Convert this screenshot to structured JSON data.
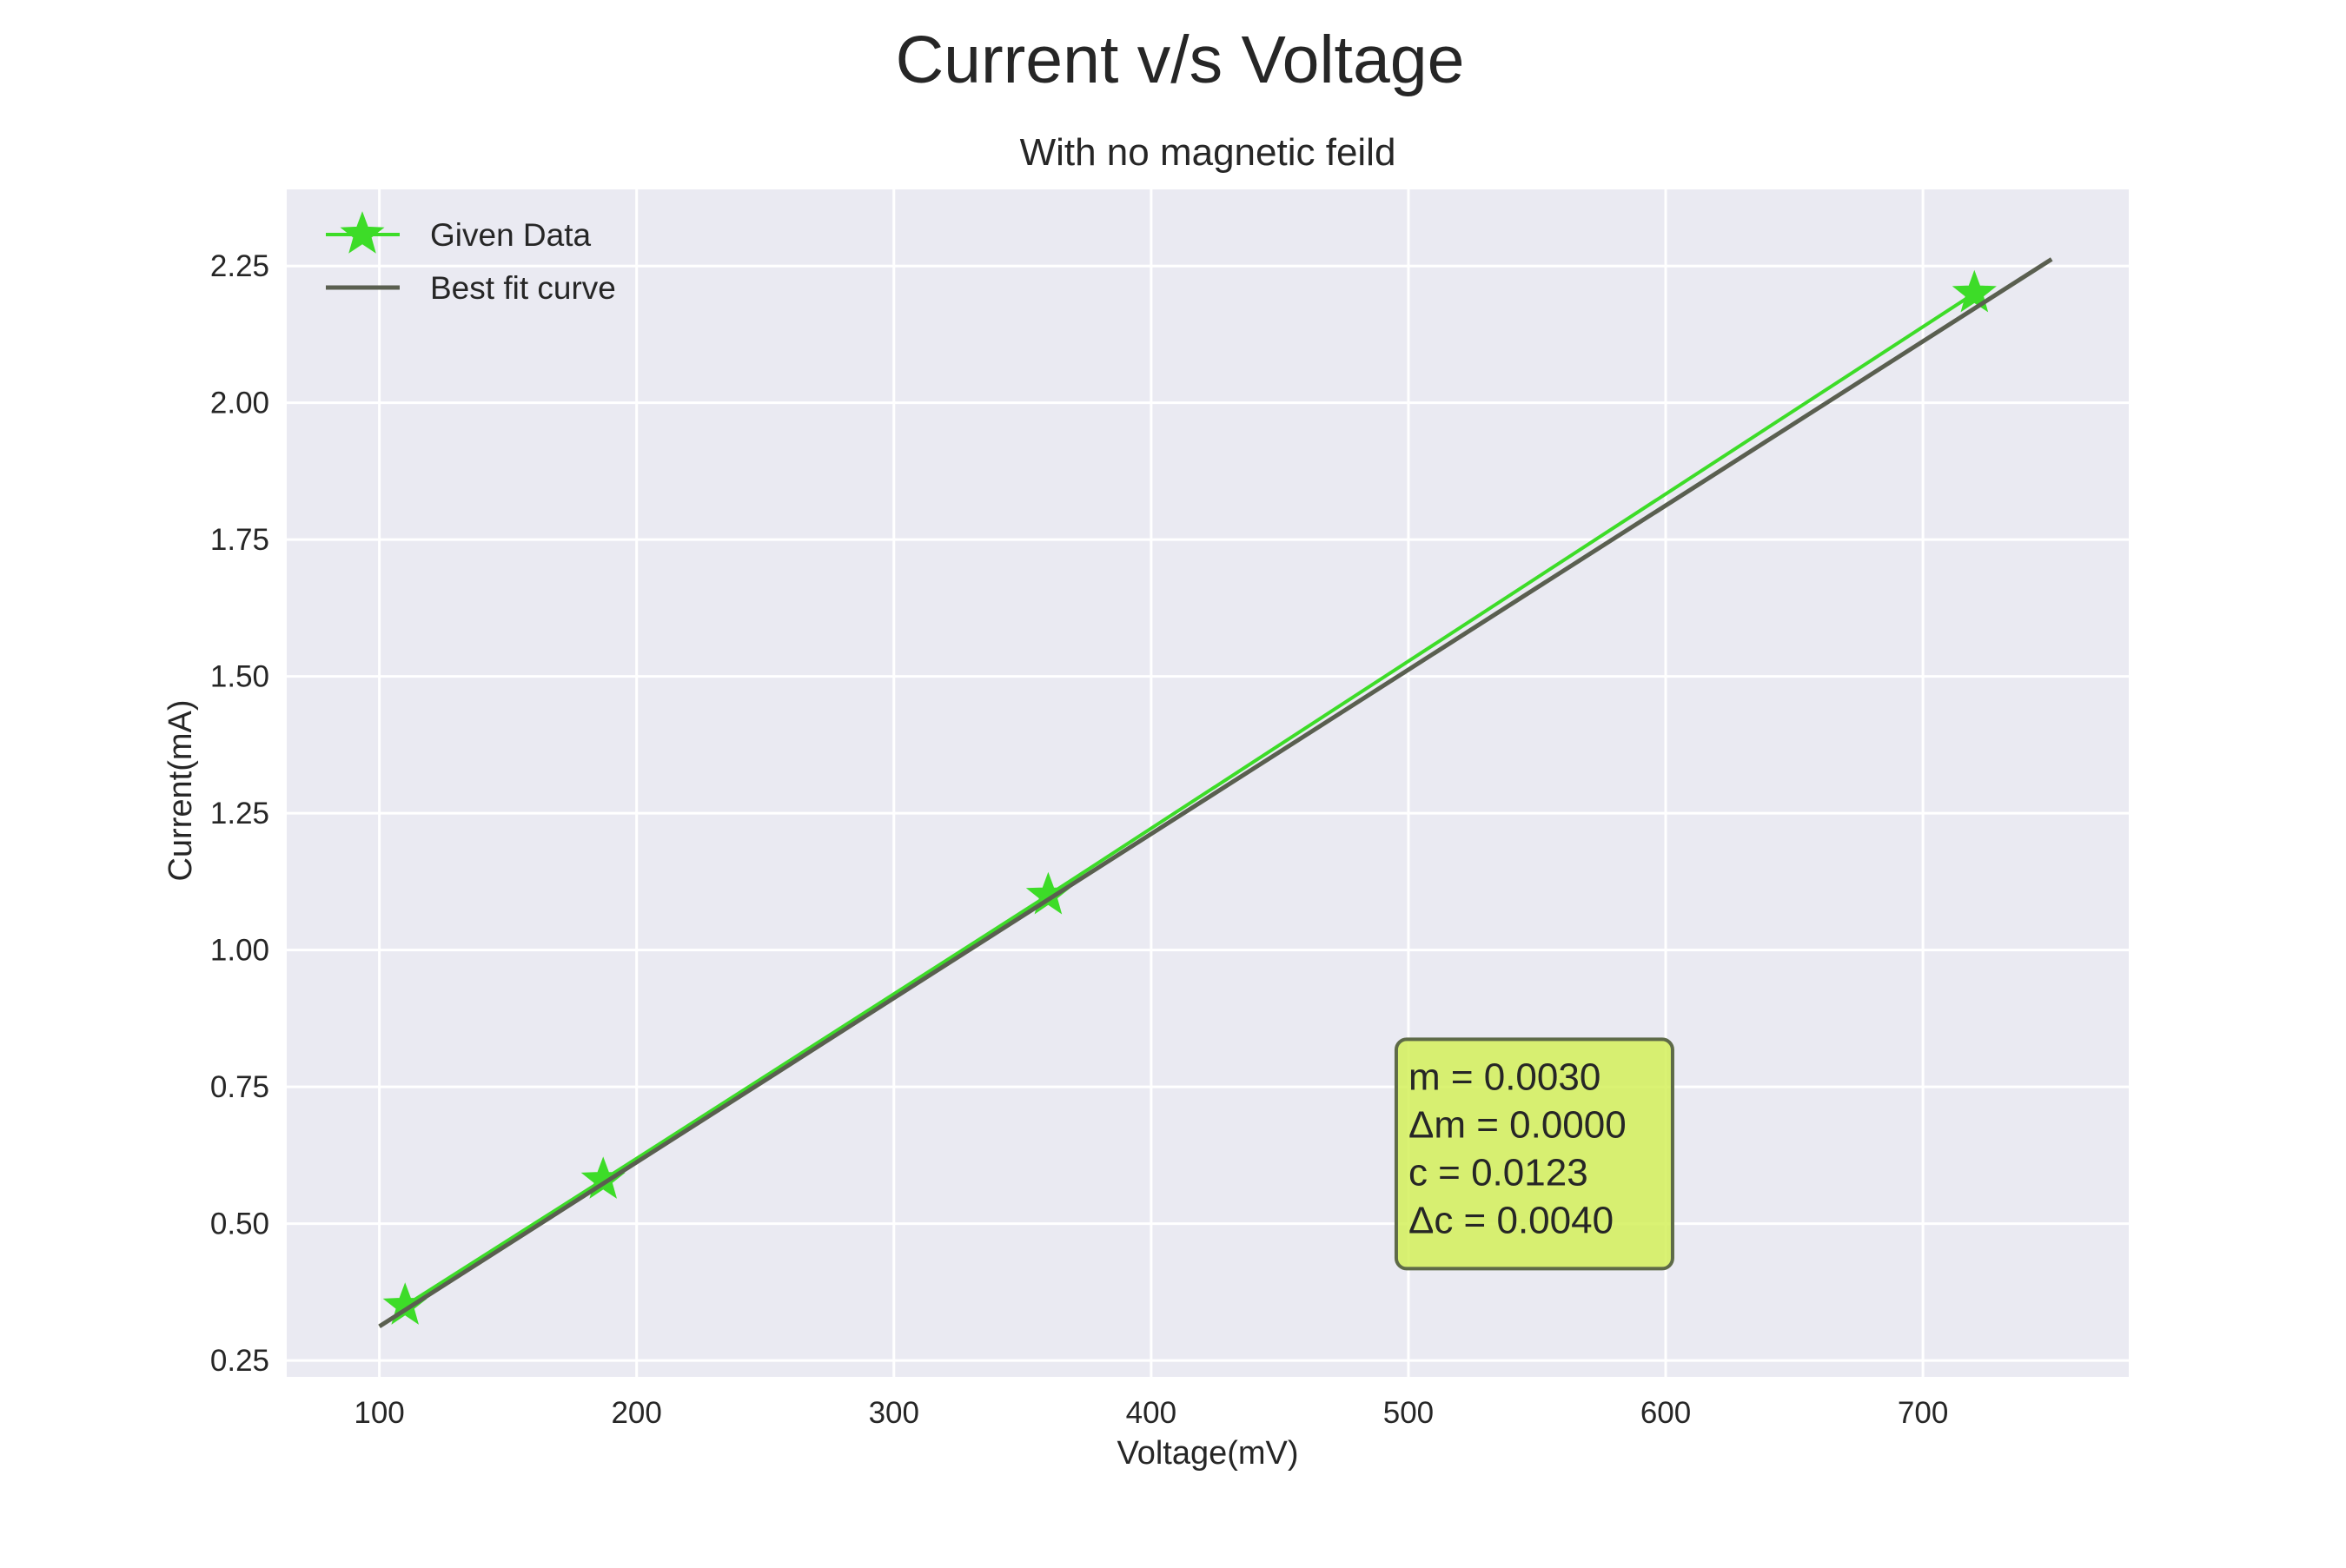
{
  "chart_data": {
    "type": "line",
    "title": "Current v/s Voltage",
    "subtitle": "With no magnetic feild",
    "xlabel": "Voltage(mV)",
    "ylabel": "Current(mA)",
    "xlim": [
      64,
      780
    ],
    "ylim": [
      0.22,
      2.39
    ],
    "xticks": [
      100,
      200,
      300,
      400,
      500,
      600,
      700
    ],
    "xtick_labels": [
      "100",
      "200",
      "300",
      "400",
      "500",
      "600",
      "700"
    ],
    "yticks": [
      0.25,
      0.5,
      0.75,
      1.0,
      1.25,
      1.5,
      1.75,
      2.0,
      2.25
    ],
    "ytick_labels": [
      "0.25",
      "0.50",
      "0.75",
      "1.00",
      "1.25",
      "1.50",
      "1.75",
      "2.00",
      "2.25"
    ],
    "grid": true,
    "legend_position": "top-left",
    "series": [
      {
        "name": "Given Data",
        "style": "line-with-star-markers",
        "color": "#3ddc28",
        "x": [
          110,
          187,
          360,
          720
        ],
        "y": [
          0.35,
          0.58,
          1.1,
          2.2
        ]
      },
      {
        "name": "Best fit curve",
        "style": "line",
        "color": "#5a5f50",
        "x": [
          100,
          750
        ],
        "y": [
          0.3123,
          2.2623
        ]
      }
    ],
    "annotation": {
      "lines": [
        "m = 0.0030",
        "Δm = 0.0000",
        "c = 0.0123",
        "Δc = 0.0040"
      ],
      "anchor_x": 500,
      "anchor_y": 0.44,
      "box_color": "#d4f05a",
      "border_color": "#5e6a48"
    },
    "colors": {
      "plot_background": "#eaeaf2",
      "grid": "#ffffff"
    }
  }
}
